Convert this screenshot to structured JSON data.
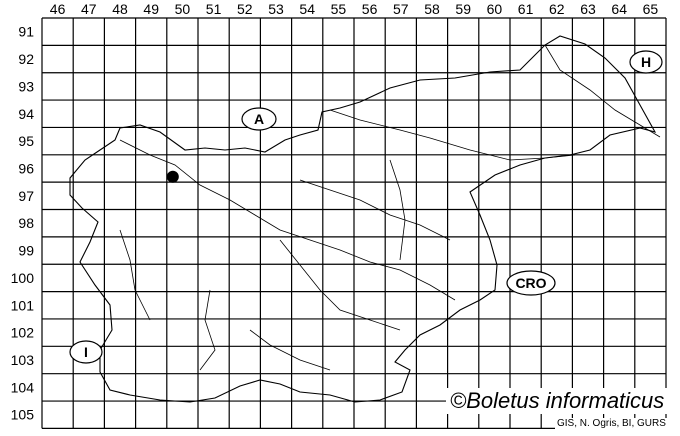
{
  "map": {
    "column_labels": [
      "46",
      "47",
      "48",
      "49",
      "50",
      "51",
      "52",
      "53",
      "54",
      "55",
      "56",
      "57",
      "58",
      "59",
      "60",
      "61",
      "62",
      "63",
      "64",
      "65"
    ],
    "row_labels": [
      "91",
      "92",
      "93",
      "94",
      "95",
      "96",
      "97",
      "98",
      "99",
      "100",
      "101",
      "102",
      "103",
      "104",
      "105"
    ],
    "country_labels": {
      "austria": "A",
      "hungary": "H",
      "croatia": "CRO",
      "italy": "I"
    },
    "occurrences": [
      {
        "column": "50",
        "row": "96"
      }
    ],
    "copyright": "©Boletus informaticus",
    "credit": "GIS, N. Ogris, BI, GURS"
  }
}
